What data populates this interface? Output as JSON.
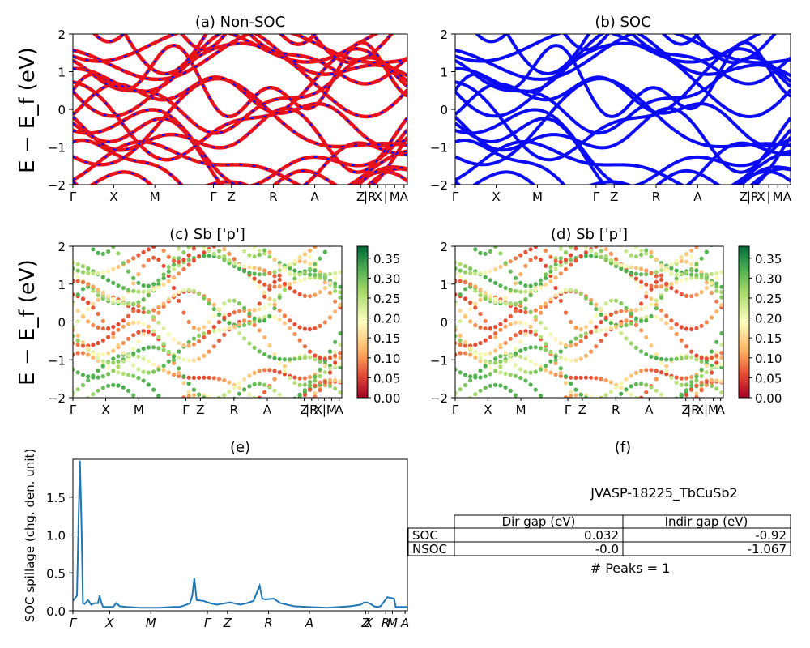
{
  "figure": {
    "ylabel_bands": "E − E_f (eV)",
    "ylabel_spillage": "SOC spillage (chg. den. unit)"
  },
  "colors": {
    "red": "#e8121a",
    "blue": "#0b0bf5",
    "line": "#1f77b4"
  },
  "chart_data": [
    {
      "panel": "a",
      "type": "line",
      "title": "(a) Non-SOC",
      "ylim": [
        -2,
        2
      ],
      "yticks": [
        "2",
        "1",
        "0",
        "−1",
        "−2"
      ],
      "kpoints": [
        "Γ",
        "X",
        "M",
        "Γ",
        "Z",
        "R",
        "A",
        "Z",
        "|R",
        "X",
        "|",
        "M",
        "A"
      ],
      "series": [
        {
          "style": "red with blue dashes"
        }
      ]
    },
    {
      "panel": "b",
      "type": "line",
      "title": "(b) SOC",
      "ylim": [
        -2,
        2
      ],
      "yticks": [
        "2",
        "1",
        "0",
        "−1",
        "−2"
      ],
      "kpoints": [
        "Γ",
        "X",
        "M",
        "Γ",
        "Z",
        "R",
        "A",
        "Z",
        "|R",
        "X",
        "|",
        "M",
        "A"
      ],
      "series": [
        {
          "style": "blue"
        }
      ]
    },
    {
      "panel": "c",
      "type": "scatter",
      "title": "(c)  Sb ['p']",
      "ylim": [
        -2,
        2
      ],
      "yticks": [
        "2",
        "1",
        "0",
        "−1",
        "−2"
      ],
      "kpoints": [
        "Γ",
        "X",
        "M",
        "Γ",
        "Z",
        "R",
        "A",
        "Z",
        "|R",
        "X",
        "|",
        "M",
        "A"
      ],
      "colorbar": {
        "range": [
          0.0,
          0.38
        ],
        "ticks": [
          "0.35",
          "0.30",
          "0.25",
          "0.20",
          "0.15",
          "0.10",
          "0.05",
          "0.00"
        ],
        "colormap": "RdYlGn"
      }
    },
    {
      "panel": "d",
      "type": "scatter",
      "title": "(d) Sb ['p']",
      "ylim": [
        -2,
        2
      ],
      "yticks": [
        "2",
        "1",
        "0",
        "−1",
        "−2"
      ],
      "kpoints": [
        "Γ",
        "X",
        "M",
        "Γ",
        "Z",
        "R",
        "A",
        "Z",
        "|R",
        "X",
        "|",
        "M",
        "A"
      ],
      "colorbar": {
        "range": [
          0.0,
          0.38
        ],
        "ticks": [
          "0.35",
          "0.30",
          "0.25",
          "0.20",
          "0.15",
          "0.10",
          "0.05",
          "0.00"
        ],
        "colormap": "RdYlGn"
      }
    },
    {
      "panel": "e",
      "type": "line",
      "title": "(e)",
      "ylim": [
        0,
        2.0
      ],
      "yticks": [
        "1.5",
        "1.0",
        "0.5",
        "0.0"
      ],
      "xticks": [
        "Γ",
        "X",
        "M",
        "Γ",
        "Z",
        "R",
        "A",
        "Z",
        "X",
        "R",
        "M",
        "A"
      ],
      "x": [
        0,
        0.012,
        0.017,
        0.021,
        0.026,
        0.03,
        0.035,
        0.045,
        0.055,
        0.065,
        0.075,
        0.08,
        0.085,
        0.09,
        0.1,
        0.12,
        0.13,
        0.14,
        0.16,
        0.2,
        0.26,
        0.3,
        0.32,
        0.34,
        0.35,
        0.357,
        0.363,
        0.37,
        0.39,
        0.41,
        0.43,
        0.47,
        0.5,
        0.52,
        0.54,
        0.55,
        0.558,
        0.566,
        0.575,
        0.6,
        0.62,
        0.66,
        0.7,
        0.76,
        0.8,
        0.83,
        0.86,
        0.87,
        0.88,
        0.89,
        0.9,
        0.91,
        0.92,
        0.94,
        0.95,
        0.96,
        0.965,
        0.97,
        1.0
      ],
      "y": [
        0.13,
        0.2,
        1.2,
        1.98,
        1.1,
        0.1,
        0.09,
        0.14,
        0.08,
        0.1,
        0.1,
        0.2,
        0.11,
        0.05,
        0.05,
        0.05,
        0.1,
        0.06,
        0.05,
        0.04,
        0.04,
        0.05,
        0.05,
        0.08,
        0.1,
        0.2,
        0.43,
        0.14,
        0.13,
        0.1,
        0.08,
        0.11,
        0.08,
        0.1,
        0.13,
        0.24,
        0.33,
        0.16,
        0.15,
        0.16,
        0.1,
        0.06,
        0.05,
        0.04,
        0.05,
        0.06,
        0.08,
        0.11,
        0.11,
        0.09,
        0.06,
        0.05,
        0.06,
        0.18,
        0.17,
        0.16,
        0.05,
        0.05,
        0.05
      ]
    },
    {
      "panel": "f",
      "type": "table",
      "title": "(f)",
      "name": "JVASP-18225_TbCuSb2",
      "columns": [
        "",
        "Dir gap (eV)",
        "Indir gap (eV)"
      ],
      "rows": [
        [
          "SOC",
          "0.032",
          "-0.92"
        ],
        [
          "NSOC",
          "-0.0",
          "-1.067"
        ]
      ],
      "peaks": "# Peaks = 1"
    }
  ]
}
